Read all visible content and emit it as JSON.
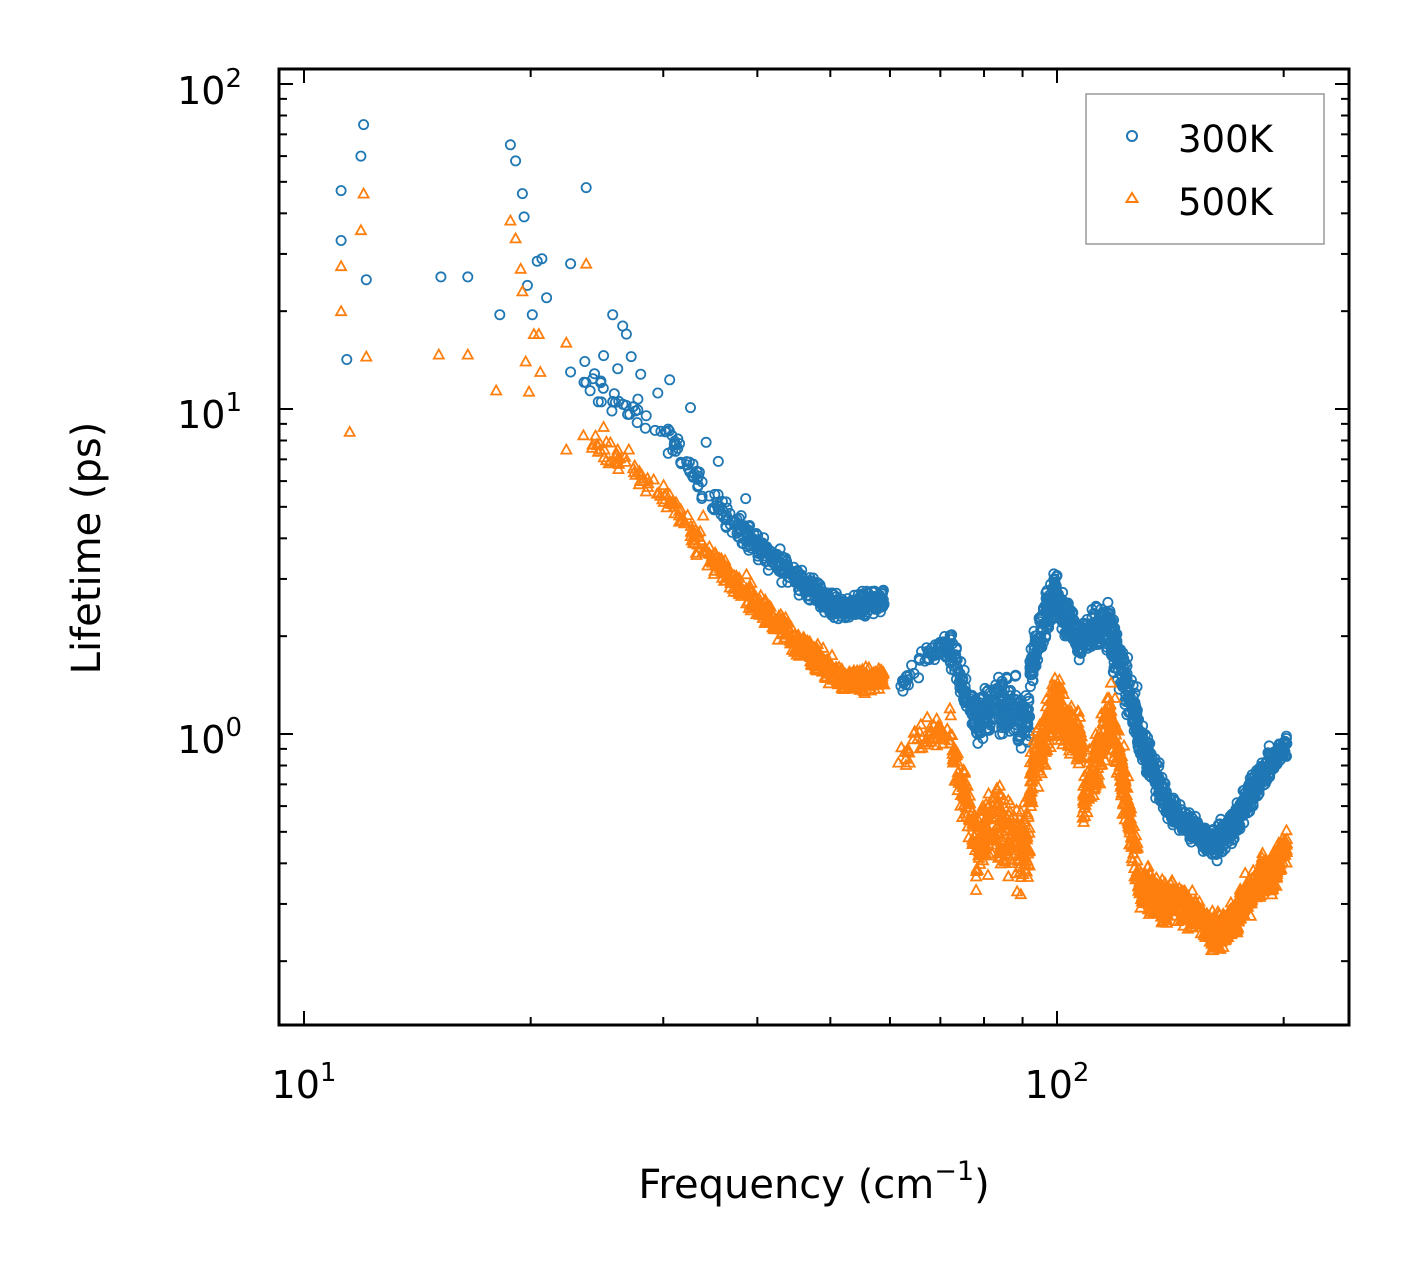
{
  "chart_data": {
    "type": "scatter",
    "title": "",
    "xlabel": "Frequency",
    "xlabel_unit": "(cm",
    "xlabel_unit_sup": "−1",
    "xlabel_unit_close": ")",
    "ylabel": "Lifetime (ps)",
    "xscale": "log",
    "yscale": "log",
    "xlim": [
      9.7,
      240
    ],
    "ylim": [
      0.13,
      100
    ],
    "x_ticks": [
      {
        "base": "10",
        "exp": "1"
      },
      {
        "base": "10",
        "exp": "2"
      }
    ],
    "y_ticks": [
      {
        "base": "10",
        "exp": "0"
      },
      {
        "base": "10",
        "exp": "1"
      },
      {
        "base": "10",
        "exp": "2"
      }
    ],
    "legend_position": "top-right",
    "series": [
      {
        "name": "300K",
        "marker": "circle",
        "color": "#1f77b4",
        "points": [
          [
            11.2,
            47
          ],
          [
            11.2,
            33
          ],
          [
            11.4,
            14.2
          ],
          [
            11.9,
            60
          ],
          [
            12.0,
            75
          ],
          [
            12.1,
            25
          ],
          [
            15.2,
            25.5
          ],
          [
            16.5,
            25.5
          ],
          [
            18.2,
            19.5
          ],
          [
            18.8,
            65
          ],
          [
            19.1,
            58
          ],
          [
            19.5,
            46
          ],
          [
            19.6,
            39
          ],
          [
            19.8,
            24
          ],
          [
            20.1,
            19.5
          ],
          [
            20.4,
            28.5
          ],
          [
            20.7,
            29
          ],
          [
            21.0,
            22
          ],
          [
            22.6,
            28
          ],
          [
            22.6,
            13
          ],
          [
            23.6,
            14
          ],
          [
            23.7,
            48
          ],
          [
            25.0,
            14.6
          ],
          [
            25.7,
            19.5
          ],
          [
            26.1,
            13.3
          ],
          [
            26.5,
            18
          ],
          [
            26.8,
            17
          ],
          [
            27.2,
            14.5
          ],
          [
            28.0,
            12.8
          ],
          [
            29.5,
            11.2
          ],
          [
            30.6,
            12.3
          ],
          [
            32.6,
            10.1
          ],
          [
            34.2,
            7.9
          ],
          [
            35.5,
            6.9
          ],
          [
            38.6,
            5.3
          ]
        ],
        "segments": [
          {
            "x": [
              23.0,
              30.0
            ],
            "y": [
              12.5,
              8.5
            ],
            "spread": 0.07,
            "n": 30
          },
          {
            "x": [
              30.0,
              35.0
            ],
            "y": [
              8.5,
              5.2
            ],
            "spread": 0.06,
            "n": 40
          },
          {
            "x": [
              35.0,
              40.0
            ],
            "y": [
              5.2,
              3.8
            ],
            "spread": 0.06,
            "n": 70
          },
          {
            "x": [
              40.0,
              46.0
            ],
            "y": [
              3.8,
              2.9
            ],
            "spread": 0.06,
            "n": 120
          },
          {
            "x": [
              46.0,
              52.0
            ],
            "y": [
              2.9,
              2.4
            ],
            "spread": 0.05,
            "n": 160
          },
          {
            "x": [
              52.0,
              59.0
            ],
            "y": [
              2.4,
              2.6
            ],
            "spread": 0.05,
            "n": 160
          },
          {
            "x": [
              62.0,
              67.0
            ],
            "y": [
              1.35,
              1.75
            ],
            "spread": 0.06,
            "n": 20
          },
          {
            "x": [
              67.0,
              72.0
            ],
            "y": [
              1.75,
              1.85
            ],
            "spread": 0.05,
            "n": 40
          },
          {
            "x": [
              72.0,
              78.0
            ],
            "y": [
              1.8,
              1.1
            ],
            "spread": 0.09,
            "n": 80
          },
          {
            "x": [
              78.0,
              84.0
            ],
            "y": [
              1.1,
              1.25
            ],
            "spread": 0.12,
            "n": 90
          },
          {
            "x": [
              84.0,
              92.0
            ],
            "y": [
              1.2,
              1.1
            ],
            "spread": 0.14,
            "n": 120
          },
          {
            "x": [
              92.0,
              100.0
            ],
            "y": [
              1.6,
              2.9
            ],
            "spread": 0.1,
            "n": 140
          },
          {
            "x": [
              100.0,
              108.0
            ],
            "y": [
              2.5,
              1.9
            ],
            "spread": 0.09,
            "n": 130
          },
          {
            "x": [
              108.0,
              118.0
            ],
            "y": [
              2.0,
              2.2
            ],
            "spread": 0.09,
            "n": 150
          },
          {
            "x": [
              118.0,
              128.0
            ],
            "y": [
              2.0,
              1.1
            ],
            "spread": 0.12,
            "n": 150
          },
          {
            "x": [
              128.0,
              140.0
            ],
            "y": [
              1.0,
              0.62
            ],
            "spread": 0.08,
            "n": 160
          },
          {
            "x": [
              140.0,
              160.0
            ],
            "y": [
              0.6,
              0.46
            ],
            "spread": 0.06,
            "n": 180
          },
          {
            "x": [
              160.0,
              175.0
            ],
            "y": [
              0.44,
              0.55
            ],
            "spread": 0.07,
            "n": 150
          },
          {
            "x": [
              175.0,
              192.0
            ],
            "y": [
              0.58,
              0.82
            ],
            "spread": 0.07,
            "n": 170
          },
          {
            "x": [
              192.0,
              202.0
            ],
            "y": [
              0.8,
              0.93
            ],
            "spread": 0.05,
            "n": 80
          }
        ]
      },
      {
        "name": "500K",
        "marker": "triangle",
        "color": "#ff7f0e",
        "points": [
          [
            11.2,
            27.5
          ],
          [
            11.2,
            20
          ],
          [
            11.5,
            8.5
          ],
          [
            11.9,
            35.5
          ],
          [
            12.0,
            46
          ],
          [
            12.1,
            14.5
          ],
          [
            15.1,
            14.7
          ],
          [
            16.5,
            14.7
          ],
          [
            18.0,
            11.4
          ],
          [
            18.8,
            38
          ],
          [
            19.1,
            33.5
          ],
          [
            19.4,
            27
          ],
          [
            19.5,
            23
          ],
          [
            19.7,
            14
          ],
          [
            19.9,
            11.3
          ],
          [
            20.2,
            17
          ],
          [
            20.5,
            17
          ],
          [
            20.6,
            13
          ],
          [
            22.3,
            16
          ],
          [
            22.3,
            7.5
          ],
          [
            23.7,
            28
          ],
          [
            23.5,
            8.3
          ],
          [
            24.5,
            7.8
          ],
          [
            25.0,
            8.8
          ],
          [
            25.4,
            6.8
          ],
          [
            26.1,
            7.5
          ],
          [
            27.0,
            7.5
          ],
          [
            28.2,
            6.0
          ],
          [
            31.0,
            5.0
          ],
          [
            33.9,
            4.7
          ],
          [
            38.7,
            3.1
          ]
        ],
        "segments": [
          {
            "x": [
              24.0,
              30.0
            ],
            "y": [
              8.0,
              5.5
            ],
            "spread": 0.06,
            "n": 40
          },
          {
            "x": [
              30.0,
              35.0
            ],
            "y": [
              5.5,
              3.4
            ],
            "spread": 0.06,
            "n": 60
          },
          {
            "x": [
              35.0,
              40.0
            ],
            "y": [
              3.4,
              2.5
            ],
            "spread": 0.06,
            "n": 90
          },
          {
            "x": [
              40.0,
              46.0
            ],
            "y": [
              2.5,
              1.85
            ],
            "spread": 0.06,
            "n": 130
          },
          {
            "x": [
              46.0,
              52.0
            ],
            "y": [
              1.85,
              1.45
            ],
            "spread": 0.06,
            "n": 160
          },
          {
            "x": [
              52.0,
              59.0
            ],
            "y": [
              1.45,
              1.5
            ],
            "spread": 0.05,
            "n": 160
          },
          {
            "x": [
              61.5,
              67.0
            ],
            "y": [
              0.82,
              1.0
            ],
            "spread": 0.07,
            "n": 20
          },
          {
            "x": [
              67.0,
              72.0
            ],
            "y": [
              1.0,
              1.0
            ],
            "spread": 0.06,
            "n": 40
          },
          {
            "x": [
              72.0,
              78.0
            ],
            "y": [
              0.95,
              0.5
            ],
            "spread": 0.12,
            "n": 90
          },
          {
            "x": [
              78.0,
              84.0
            ],
            "y": [
              0.45,
              0.55
            ],
            "spread": 0.16,
            "n": 110
          },
          {
            "x": [
              84.0,
              92.0
            ],
            "y": [
              0.5,
              0.45
            ],
            "spread": 0.17,
            "n": 140
          },
          {
            "x": [
              92.0,
              100.0
            ],
            "y": [
              0.7,
              1.3
            ],
            "spread": 0.14,
            "n": 150
          },
          {
            "x": [
              100.0,
              108.0
            ],
            "y": [
              1.2,
              0.9
            ],
            "spread": 0.12,
            "n": 140
          },
          {
            "x": [
              108.0,
              118.0
            ],
            "y": [
              0.6,
              1.2
            ],
            "spread": 0.14,
            "n": 150
          },
          {
            "x": [
              118.0,
              128.0
            ],
            "y": [
              1.1,
              0.4
            ],
            "spread": 0.14,
            "n": 150
          },
          {
            "x": [
              128.0,
              140.0
            ],
            "y": [
              0.35,
              0.3
            ],
            "spread": 0.1,
            "n": 160
          },
          {
            "x": [
              140.0,
              160.0
            ],
            "y": [
              0.32,
              0.26
            ],
            "spread": 0.08,
            "n": 180
          },
          {
            "x": [
              160.0,
              175.0
            ],
            "y": [
              0.24,
              0.28
            ],
            "spread": 0.08,
            "n": 150
          },
          {
            "x": [
              175.0,
              192.0
            ],
            "y": [
              0.3,
              0.38
            ],
            "spread": 0.09,
            "n": 170
          },
          {
            "x": [
              192.0,
              202.0
            ],
            "y": [
              0.36,
              0.45
            ],
            "spread": 0.08,
            "n": 90
          }
        ]
      }
    ]
  }
}
